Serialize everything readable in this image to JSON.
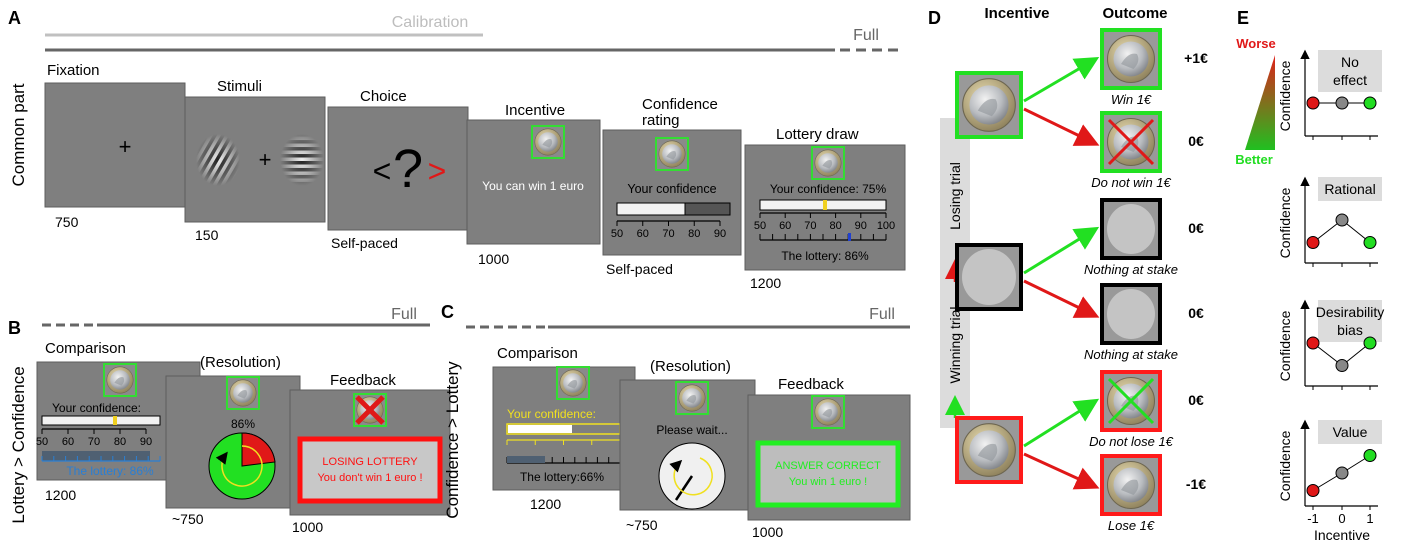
{
  "panel_a": {
    "letter": "A",
    "calibration": "Calibration",
    "full": "Full",
    "row_label": "Common part",
    "fixation": {
      "label": "Fixation",
      "duration": "750",
      "cross": "+"
    },
    "stimuli": {
      "label": "Stimuli",
      "duration": "150",
      "cross": "+"
    },
    "choice": {
      "label": "Choice",
      "duration": "Self-paced",
      "left": "<",
      "question": "?",
      "right": ">"
    },
    "incentive": {
      "label": "Incentive",
      "duration": "1000",
      "text": "You can win 1 euro"
    },
    "confidence": {
      "label_lines": [
        "Confidence",
        "rating"
      ],
      "duration": "Self-paced",
      "text": "Your confidence",
      "ticks": [
        50,
        60,
        70,
        80,
        90
      ]
    },
    "lottery": {
      "label": "Lottery draw",
      "duration": "1200",
      "confidence": "Your confidence: 75%",
      "ticks": [
        50,
        60,
        70,
        80,
        90,
        100
      ],
      "lottery": "The lottery: 86%"
    }
  },
  "panel_b": {
    "letter": "B",
    "full": "Full",
    "row_label": "Lottery > Confidence",
    "comparison": {
      "label": "Comparison",
      "duration": "1200",
      "confidence": "Your confidence:",
      "ticks": [
        50,
        60,
        70,
        80,
        90
      ],
      "lottery": "The lottery: 86%"
    },
    "resolution": {
      "label": "(Resolution)",
      "duration": "~750",
      "percent": "86%"
    },
    "feedback": {
      "label": "Feedback",
      "duration": "1000",
      "line1": "LOSING LOTTERY",
      "line2": "You don't win 1 euro !"
    }
  },
  "panel_c": {
    "letter": "C",
    "full": "Full",
    "row_label": "Confidence > Lottery",
    "comparison": {
      "label": "Comparison",
      "duration": "1200",
      "confidence": "Your confidence:",
      "lottery": "The lottery:66%"
    },
    "resolution": {
      "label": "(Resolution)",
      "duration": "~750",
      "text": "Please wait..."
    },
    "feedback": {
      "label": "Feedback",
      "duration": "1000",
      "line1": "ANSWER CORRECT",
      "line2": "You win 1 euro !"
    }
  },
  "panel_d": {
    "letter": "D",
    "incentive_header": "Incentive",
    "outcome_header": "Outcome",
    "legend": {
      "winning": "Winning trial",
      "losing": "Losing trial"
    },
    "outcomes": [
      {
        "value": "+1€",
        "caption": "Win 1€"
      },
      {
        "value": "0€",
        "caption": "Do not win 1€"
      },
      {
        "value": "0€",
        "caption": "Nothing at stake"
      },
      {
        "value": "0€",
        "caption": "Nothing at stake"
      },
      {
        "value": "0€",
        "caption": "Do not lose 1€"
      },
      {
        "value": "-1€",
        "caption": "Lose 1€"
      }
    ]
  },
  "panel_e": {
    "letter": "E",
    "worse": "Worse",
    "better": "Better",
    "plots": [
      {
        "title": [
          "No",
          "effect"
        ],
        "y_label": "Confidence"
      },
      {
        "title": [
          "Rational"
        ],
        "y_label": "Confidence"
      },
      {
        "title": [
          "Desirability",
          "bias"
        ],
        "y_label": "Confidence"
      },
      {
        "title": [
          "Value"
        ],
        "y_label": "Confidence"
      }
    ],
    "x_ticks": [
      -1,
      0,
      1
    ],
    "x_label": "Incentive"
  }
}
